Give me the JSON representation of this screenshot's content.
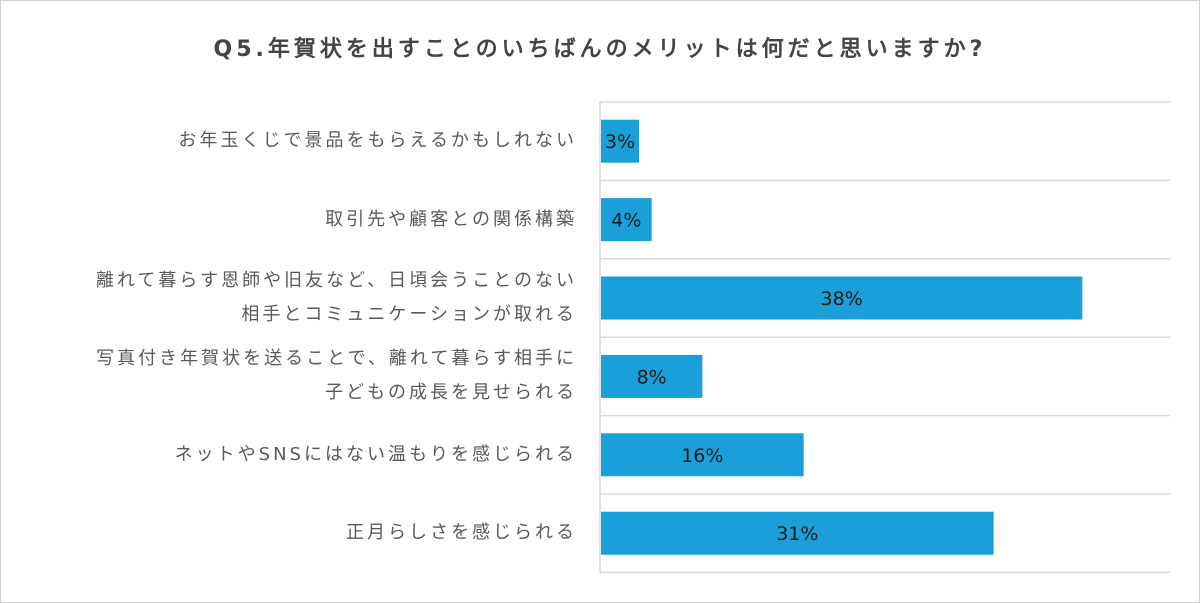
{
  "chart_data": {
    "type": "bar",
    "orientation": "horizontal",
    "title": "Q5.年賀状を出すことのいちばんのメリットは何だと思いますか?",
    "categories": [
      "お年玉くじで景品をもらえるかもしれない",
      "取引先や顧客との関係構築",
      "離れて暮らす恩師や旧友など、日頃会うことのない\n相手とコミュニケーションが取れる",
      "写真付き年賀状を送ることで、離れて暮らす相手に\n子どもの成長を見せられる",
      "ネットやSNSにはない温もりを感じられる",
      "正月らしさを感じられる"
    ],
    "values": [
      3,
      4,
      38,
      8,
      16,
      31
    ],
    "data_labels": [
      "3%",
      "4%",
      "38%",
      "8%",
      "16%",
      "31%"
    ],
    "unit": "%",
    "xlim": [
      0,
      45
    ],
    "grid": true,
    "legend": "none",
    "bar_color": "#1a9fd8"
  }
}
